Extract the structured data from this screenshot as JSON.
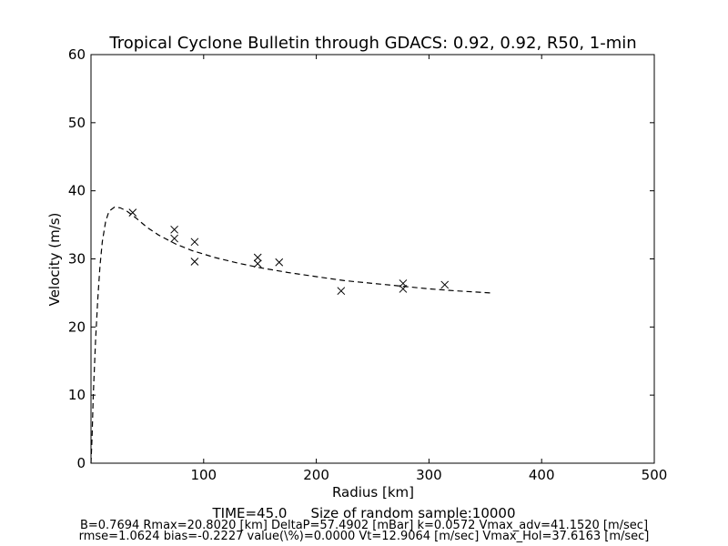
{
  "chart_data": {
    "type": "scatter",
    "title": "Tropical Cyclone Bulletin through GDACS: 0.92, 0.92, R50, 1-min",
    "xlabel": "Radius [km]",
    "ylabel": "Velocity (m/s)",
    "xlim": [
      0,
      500
    ],
    "ylim": [
      0,
      60
    ],
    "x_ticks": [
      100,
      200,
      300,
      400,
      500
    ],
    "y_ticks": [
      0,
      10,
      20,
      30,
      40,
      50,
      60
    ],
    "grid": false,
    "series": [
      {
        "marker": "x",
        "color": "#000000",
        "points": [
          [
            37,
            36.8
          ],
          [
            74,
            34.3
          ],
          [
            74,
            33.0
          ],
          [
            92,
            32.5
          ],
          [
            92,
            29.6
          ],
          [
            148,
            30.2
          ],
          [
            148,
            29.3
          ],
          [
            167,
            29.5
          ],
          [
            222,
            25.3
          ],
          [
            277,
            26.4
          ],
          [
            277,
            25.6
          ],
          [
            314,
            26.2
          ]
        ]
      },
      {
        "style": "dashed",
        "color": "#000000",
        "points": [
          [
            0,
            0
          ],
          [
            1,
            4
          ],
          [
            2,
            10
          ],
          [
            4,
            18
          ],
          [
            6,
            24
          ],
          [
            8,
            29
          ],
          [
            10,
            32.5
          ],
          [
            13,
            35.5
          ],
          [
            16,
            37
          ],
          [
            20.8,
            37.6
          ],
          [
            26,
            37.5
          ],
          [
            32,
            37.0
          ],
          [
            40,
            36.0
          ],
          [
            50,
            34.6
          ],
          [
            60,
            33.5
          ],
          [
            75,
            32.2
          ],
          [
            90,
            31.2
          ],
          [
            110,
            30.2
          ],
          [
            130,
            29.4
          ],
          [
            150,
            28.7
          ],
          [
            175,
            28.0
          ],
          [
            200,
            27.4
          ],
          [
            225,
            26.8
          ],
          [
            250,
            26.4
          ],
          [
            275,
            26.0
          ],
          [
            300,
            25.6
          ],
          [
            325,
            25.3
          ],
          [
            355,
            25.0
          ]
        ]
      }
    ]
  },
  "footer": {
    "time": "TIME=45.0",
    "sample": "Size of random sample:10000",
    "line1": "B=0.7694 Rmax=20.8020 [km]  DeltaP=57.4902 [mBar] k=0.0572 Vmax_adv=41.1520 [m/sec]",
    "line2": "rmse=1.0624 bias=-0.2227 value(\\%)=0.0000 Vt=12.9064 [m/sec] Vmax_Hol=37.6163 [m/sec]"
  }
}
